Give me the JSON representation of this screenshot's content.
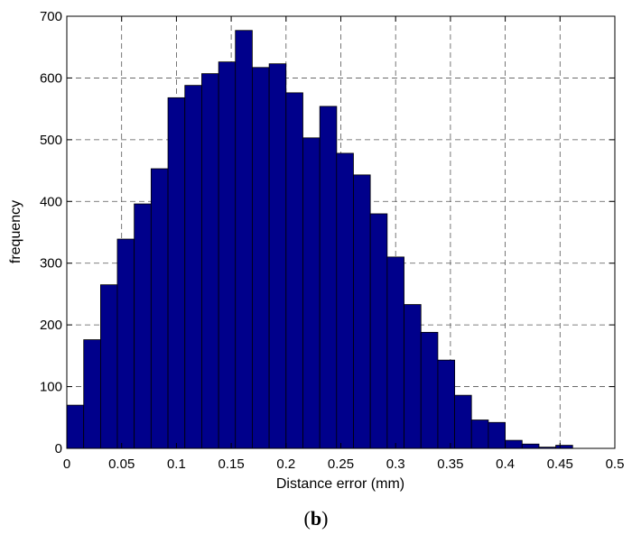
{
  "chart_data": {
    "type": "bar",
    "title": "",
    "xlabel": "Distance error (mm)",
    "ylabel": "frequency",
    "xlim": [
      0,
      0.5
    ],
    "ylim": [
      0,
      700
    ],
    "grid": true,
    "bar_color": "#00008B",
    "bin_width": 0.015385,
    "x_ticks": [
      "0",
      "0.05",
      "0.1",
      "0.15",
      "0.2",
      "0.25",
      "0.3",
      "0.35",
      "0.4",
      "0.45",
      "0.5"
    ],
    "y_ticks": [
      "0",
      "100",
      "200",
      "300",
      "400",
      "500",
      "600",
      "700"
    ],
    "bins": [
      {
        "x": 0.0077,
        "value": 70
      },
      {
        "x": 0.0231,
        "value": 176
      },
      {
        "x": 0.0385,
        "value": 265
      },
      {
        "x": 0.0538,
        "value": 339
      },
      {
        "x": 0.0692,
        "value": 396
      },
      {
        "x": 0.0846,
        "value": 453
      },
      {
        "x": 0.1,
        "value": 568
      },
      {
        "x": 0.1154,
        "value": 588
      },
      {
        "x": 0.1308,
        "value": 607
      },
      {
        "x": 0.1462,
        "value": 626
      },
      {
        "x": 0.1615,
        "value": 677
      },
      {
        "x": 0.1769,
        "value": 617
      },
      {
        "x": 0.1923,
        "value": 623
      },
      {
        "x": 0.2077,
        "value": 576
      },
      {
        "x": 0.2231,
        "value": 503
      },
      {
        "x": 0.2385,
        "value": 554
      },
      {
        "x": 0.2538,
        "value": 478
      },
      {
        "x": 0.2692,
        "value": 443
      },
      {
        "x": 0.2846,
        "value": 380
      },
      {
        "x": 0.3,
        "value": 310
      },
      {
        "x": 0.3154,
        "value": 233
      },
      {
        "x": 0.3308,
        "value": 188
      },
      {
        "x": 0.3462,
        "value": 143
      },
      {
        "x": 0.3615,
        "value": 86
      },
      {
        "x": 0.3769,
        "value": 46
      },
      {
        "x": 0.3923,
        "value": 42
      },
      {
        "x": 0.4077,
        "value": 13
      },
      {
        "x": 0.4231,
        "value": 7
      },
      {
        "x": 0.4385,
        "value": 2
      },
      {
        "x": 0.4538,
        "value": 5
      }
    ]
  },
  "caption": {
    "open": "(",
    "letter": "b",
    "close": ")"
  }
}
